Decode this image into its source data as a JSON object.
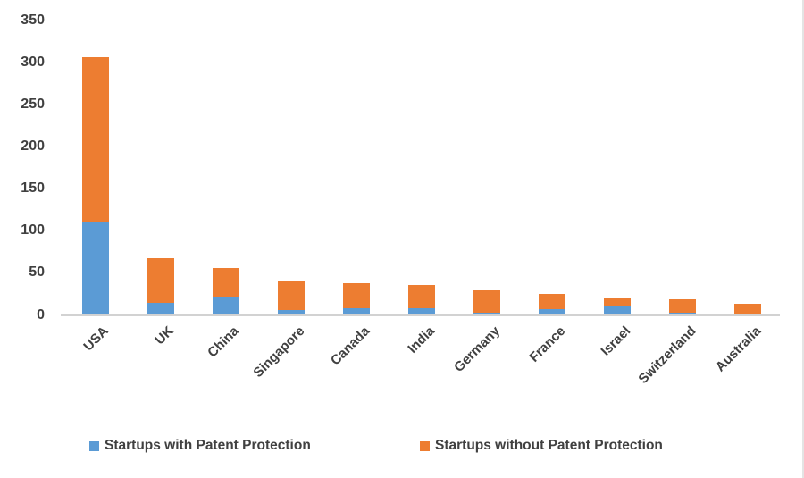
{
  "chart_data": {
    "type": "bar",
    "stacked": true,
    "title": "",
    "xlabel": "",
    "ylabel": "",
    "categories": [
      "USA",
      "UK",
      "China",
      "Singapore",
      "Canada",
      "India",
      "Germany",
      "France",
      "Israel",
      "Switzerland",
      "Australia"
    ],
    "series": [
      {
        "name": "Startups with Patent Protection",
        "color": "#5B9BD5",
        "values": [
          110,
          14,
          22,
          6,
          8,
          8,
          3,
          7,
          10,
          3,
          0
        ]
      },
      {
        "name": "Startups without Patent Protection",
        "color": "#ED7D31",
        "values": [
          197,
          53,
          34,
          35,
          30,
          28,
          26,
          18,
          10,
          16,
          13
        ]
      }
    ],
    "ylim": [
      0,
      350
    ],
    "ytick_step": 50,
    "yticks": [
      "0",
      "50",
      "100",
      "150",
      "200",
      "250",
      "300",
      "350"
    ],
    "grid": true,
    "legend_position": "bottom",
    "colors": {
      "gridline": "#D9D9D9",
      "axis_text": "#404040",
      "background": "#FFFFFF"
    }
  }
}
